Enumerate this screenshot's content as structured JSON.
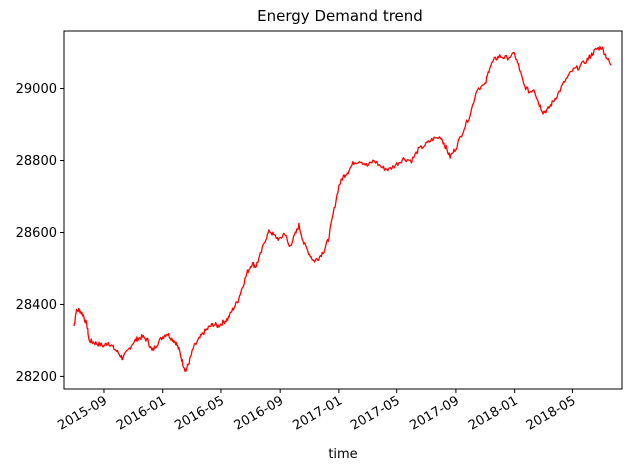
{
  "chart_data": {
    "type": "line",
    "title": "Energy Demand trend",
    "xlabel": "time",
    "ylabel": "",
    "x_ticks": [
      "2015-09",
      "2016-01",
      "2016-05",
      "2016-09",
      "2017-01",
      "2017-05",
      "2017-09",
      "2018-01",
      "2018-05"
    ],
    "y_ticks": [
      28200,
      28400,
      28600,
      28800,
      29000
    ],
    "xlim": [
      "2015-06-10",
      "2018-08-12"
    ],
    "ylim": [
      28165,
      29160
    ],
    "grid": false,
    "legend": "none",
    "colors": {
      "line": "#ff0000",
      "axes": "#000000",
      "background": "#ffffff"
    },
    "series": [
      {
        "color": "#ff0000",
        "points": [
          [
            "2015-07-01",
            28340
          ],
          [
            "2015-07-05",
            28380
          ],
          [
            "2015-07-12",
            28385
          ],
          [
            "2015-07-20",
            28370
          ],
          [
            "2015-07-28",
            28340
          ],
          [
            "2015-08-01",
            28300
          ],
          [
            "2015-08-10",
            28295
          ],
          [
            "2015-08-20",
            28290
          ],
          [
            "2015-09-01",
            28285
          ],
          [
            "2015-09-10",
            28295
          ],
          [
            "2015-09-20",
            28280
          ],
          [
            "2015-10-01",
            28265
          ],
          [
            "2015-10-10",
            28250
          ],
          [
            "2015-10-20",
            28270
          ],
          [
            "2015-11-01",
            28295
          ],
          [
            "2015-11-10",
            28305
          ],
          [
            "2015-11-20",
            28310
          ],
          [
            "2015-12-01",
            28300
          ],
          [
            "2015-12-10",
            28270
          ],
          [
            "2015-12-20",
            28290
          ],
          [
            "2016-01-01",
            28310
          ],
          [
            "2016-01-10",
            28320
          ],
          [
            "2016-01-20",
            28305
          ],
          [
            "2016-01-28",
            28295
          ],
          [
            "2016-02-05",
            28270
          ],
          [
            "2016-02-12",
            28235
          ],
          [
            "2016-02-18",
            28215
          ],
          [
            "2016-02-25",
            28240
          ],
          [
            "2016-03-05",
            28280
          ],
          [
            "2016-03-15",
            28300
          ],
          [
            "2016-03-25",
            28320
          ],
          [
            "2016-04-05",
            28335
          ],
          [
            "2016-04-15",
            28345
          ],
          [
            "2016-04-25",
            28340
          ],
          [
            "2016-05-05",
            28350
          ],
          [
            "2016-05-15",
            28360
          ],
          [
            "2016-05-25",
            28385
          ],
          [
            "2016-06-05",
            28410
          ],
          [
            "2016-06-15",
            28450
          ],
          [
            "2016-06-25",
            28490
          ],
          [
            "2016-07-05",
            28515
          ],
          [
            "2016-07-12",
            28505
          ],
          [
            "2016-07-20",
            28530
          ],
          [
            "2016-08-01",
            28580
          ],
          [
            "2016-08-10",
            28605
          ],
          [
            "2016-08-20",
            28590
          ],
          [
            "2016-09-01",
            28580
          ],
          [
            "2016-09-10",
            28600
          ],
          [
            "2016-09-20",
            28560
          ],
          [
            "2016-10-01",
            28590
          ],
          [
            "2016-10-10",
            28620
          ],
          [
            "2016-10-20",
            28570
          ],
          [
            "2016-11-01",
            28540
          ],
          [
            "2016-11-10",
            28520
          ],
          [
            "2016-11-20",
            28530
          ],
          [
            "2016-12-01",
            28550
          ],
          [
            "2016-12-10",
            28580
          ],
          [
            "2016-12-20",
            28650
          ],
          [
            "2017-01-01",
            28730
          ],
          [
            "2017-01-10",
            28755
          ],
          [
            "2017-01-20",
            28770
          ],
          [
            "2017-02-01",
            28795
          ],
          [
            "2017-02-15",
            28800
          ],
          [
            "2017-03-01",
            28785
          ],
          [
            "2017-03-15",
            28800
          ],
          [
            "2017-04-01",
            28780
          ],
          [
            "2017-04-15",
            28775
          ],
          [
            "2017-05-01",
            28790
          ],
          [
            "2017-05-15",
            28805
          ],
          [
            "2017-06-01",
            28800
          ],
          [
            "2017-06-15",
            28830
          ],
          [
            "2017-07-01",
            28845
          ],
          [
            "2017-07-15",
            28860
          ],
          [
            "2017-08-01",
            28865
          ],
          [
            "2017-08-10",
            28840
          ],
          [
            "2017-08-20",
            28810
          ],
          [
            "2017-09-01",
            28835
          ],
          [
            "2017-09-15",
            28880
          ],
          [
            "2017-10-01",
            28930
          ],
          [
            "2017-10-15",
            29000
          ],
          [
            "2017-11-01",
            29010
          ],
          [
            "2017-11-10",
            29060
          ],
          [
            "2017-11-20",
            29080
          ],
          [
            "2017-12-01",
            29090
          ],
          [
            "2017-12-15",
            29085
          ],
          [
            "2018-01-01",
            29095
          ],
          [
            "2018-01-10",
            29060
          ],
          [
            "2018-01-20",
            29010
          ],
          [
            "2018-02-01",
            28990
          ],
          [
            "2018-02-10",
            29000
          ],
          [
            "2018-02-20",
            28960
          ],
          [
            "2018-03-01",
            28935
          ],
          [
            "2018-03-10",
            28940
          ],
          [
            "2018-03-20",
            28960
          ],
          [
            "2018-04-01",
            28985
          ],
          [
            "2018-04-15",
            29020
          ],
          [
            "2018-05-01",
            29050
          ],
          [
            "2018-05-15",
            29060
          ],
          [
            "2018-06-01",
            29080
          ],
          [
            "2018-06-10",
            29095
          ],
          [
            "2018-06-20",
            29110
          ],
          [
            "2018-07-01",
            29115
          ],
          [
            "2018-07-10",
            29090
          ],
          [
            "2018-07-20",
            29065
          ]
        ]
      }
    ]
  }
}
